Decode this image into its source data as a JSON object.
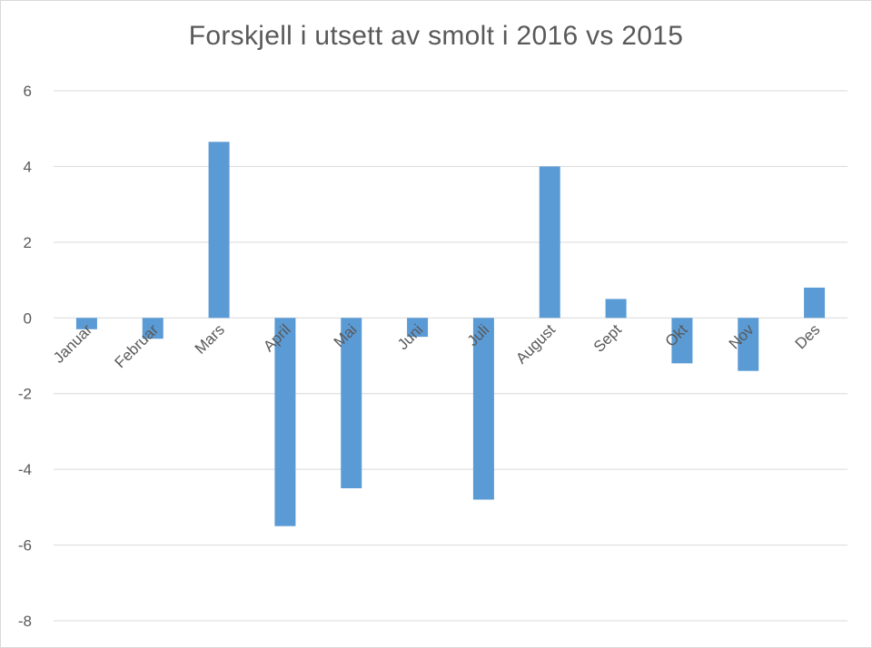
{
  "chart_data": {
    "type": "bar",
    "title": "Forskjell i utsett av smolt i 2016 vs 2015",
    "xlabel": "",
    "ylabel": "",
    "categories": [
      "Januar",
      "Februar",
      "Mars",
      "April",
      "Mai",
      "Juni",
      "Juli",
      "August",
      "Sept",
      "Okt",
      "Nov",
      "Des"
    ],
    "series": [
      {
        "values": [
          -0.3,
          -0.55,
          4.65,
          -5.5,
          -4.5,
          -0.5,
          -4.8,
          4.0,
          0.5,
          -1.2,
          -1.4,
          0.8
        ],
        "color": "#5b9bd5"
      }
    ],
    "ylim": [
      -8,
      6
    ],
    "yticks": [
      6,
      4,
      2,
      0,
      -2,
      -4,
      -6,
      -8
    ],
    "grid": true,
    "legend": "none",
    "colors": {
      "bar": "#5b9bd5",
      "grid": "#d9d9d9",
      "text": "#595959"
    }
  }
}
